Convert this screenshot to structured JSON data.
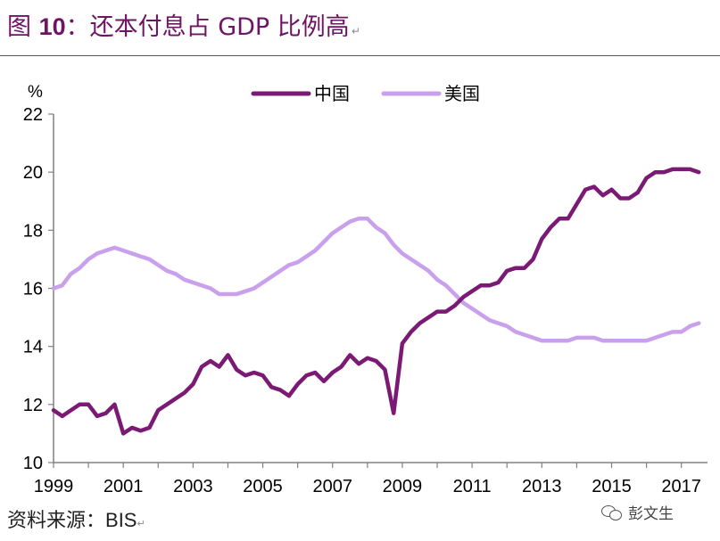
{
  "title": {
    "prefix": "图 ",
    "number": "10",
    "text": "：还本付息占 GDP 比例高",
    "return_mark": "↵"
  },
  "source": {
    "label": "资料来源：",
    "value": "BIS",
    "return_mark": "↵"
  },
  "watermark": {
    "icon": "wechat-icon",
    "text": "彭文生"
  },
  "chart_data": {
    "type": "line",
    "title": "",
    "ylabel": "%",
    "xlabel": "",
    "ylim": [
      10,
      22
    ],
    "yticks": [
      10,
      12,
      14,
      16,
      18,
      20,
      22
    ],
    "xlim": [
      1999,
      2017.75
    ],
    "xticks": [
      1999,
      2001,
      2003,
      2005,
      2007,
      2009,
      2011,
      2013,
      2015,
      2017
    ],
    "legend_position": "top-center",
    "grid": false,
    "series": [
      {
        "name": "中国",
        "color": "#7b1a74",
        "x": [
          1999.0,
          1999.25,
          1999.5,
          1999.75,
          2000.0,
          2000.25,
          2000.5,
          2000.75,
          2001.0,
          2001.25,
          2001.5,
          2001.75,
          2002.0,
          2002.25,
          2002.5,
          2002.75,
          2003.0,
          2003.25,
          2003.5,
          2003.75,
          2004.0,
          2004.25,
          2004.5,
          2004.75,
          2005.0,
          2005.25,
          2005.5,
          2005.75,
          2006.0,
          2006.25,
          2006.5,
          2006.75,
          2007.0,
          2007.25,
          2007.5,
          2007.75,
          2008.0,
          2008.25,
          2008.5,
          2008.75,
          2009.0,
          2009.25,
          2009.5,
          2009.75,
          2010.0,
          2010.25,
          2010.5,
          2010.75,
          2011.0,
          2011.25,
          2011.5,
          2011.75,
          2012.0,
          2012.25,
          2012.5,
          2012.75,
          2013.0,
          2013.25,
          2013.5,
          2013.75,
          2014.0,
          2014.25,
          2014.5,
          2014.75,
          2015.0,
          2015.25,
          2015.5,
          2015.75,
          2016.0,
          2016.25,
          2016.5,
          2016.75,
          2017.0,
          2017.25,
          2017.5
        ],
        "values": [
          11.8,
          11.6,
          11.8,
          12.0,
          12.0,
          11.6,
          11.7,
          12.0,
          11.0,
          11.2,
          11.1,
          11.2,
          11.8,
          12.0,
          12.2,
          12.4,
          12.7,
          13.3,
          13.5,
          13.3,
          13.7,
          13.2,
          13.0,
          13.1,
          13.0,
          12.6,
          12.5,
          12.3,
          12.7,
          13.0,
          13.1,
          12.8,
          13.1,
          13.3,
          13.7,
          13.4,
          13.6,
          13.5,
          13.2,
          11.7,
          14.1,
          14.5,
          14.8,
          15.0,
          15.2,
          15.2,
          15.4,
          15.7,
          15.9,
          16.1,
          16.1,
          16.2,
          16.6,
          16.7,
          16.7,
          17.0,
          17.7,
          18.1,
          18.4,
          18.4,
          18.9,
          19.4,
          19.5,
          19.2,
          19.4,
          19.1,
          19.1,
          19.3,
          19.8,
          20.0,
          20.0,
          20.1,
          20.1,
          20.1,
          20.0
        ]
      },
      {
        "name": "美国",
        "color": "#c9a0ec",
        "x": [
          1999.0,
          1999.25,
          1999.5,
          1999.75,
          2000.0,
          2000.25,
          2000.5,
          2000.75,
          2001.0,
          2001.25,
          2001.5,
          2001.75,
          2002.0,
          2002.25,
          2002.5,
          2002.75,
          2003.0,
          2003.25,
          2003.5,
          2003.75,
          2004.0,
          2004.25,
          2004.5,
          2004.75,
          2005.0,
          2005.25,
          2005.5,
          2005.75,
          2006.0,
          2006.25,
          2006.5,
          2006.75,
          2007.0,
          2007.25,
          2007.5,
          2007.75,
          2008.0,
          2008.25,
          2008.5,
          2008.75,
          2009.0,
          2009.25,
          2009.5,
          2009.75,
          2010.0,
          2010.25,
          2010.5,
          2010.75,
          2011.0,
          2011.25,
          2011.5,
          2011.75,
          2012.0,
          2012.25,
          2012.5,
          2012.75,
          2013.0,
          2013.25,
          2013.5,
          2013.75,
          2014.0,
          2014.25,
          2014.5,
          2014.75,
          2015.0,
          2015.25,
          2015.5,
          2015.75,
          2016.0,
          2016.25,
          2016.5,
          2016.75,
          2017.0,
          2017.25,
          2017.5
        ],
        "values": [
          16.0,
          16.1,
          16.5,
          16.7,
          17.0,
          17.2,
          17.3,
          17.4,
          17.3,
          17.2,
          17.1,
          17.0,
          16.8,
          16.6,
          16.5,
          16.3,
          16.2,
          16.1,
          16.0,
          15.8,
          15.8,
          15.8,
          15.9,
          16.0,
          16.2,
          16.4,
          16.6,
          16.8,
          16.9,
          17.1,
          17.3,
          17.6,
          17.9,
          18.1,
          18.3,
          18.4,
          18.4,
          18.1,
          17.9,
          17.5,
          17.2,
          17.0,
          16.8,
          16.6,
          16.3,
          16.1,
          15.8,
          15.5,
          15.3,
          15.1,
          14.9,
          14.8,
          14.7,
          14.5,
          14.4,
          14.3,
          14.2,
          14.2,
          14.2,
          14.2,
          14.3,
          14.3,
          14.3,
          14.2,
          14.2,
          14.2,
          14.2,
          14.2,
          14.2,
          14.3,
          14.4,
          14.5,
          14.5,
          14.7,
          14.8
        ]
      }
    ]
  }
}
